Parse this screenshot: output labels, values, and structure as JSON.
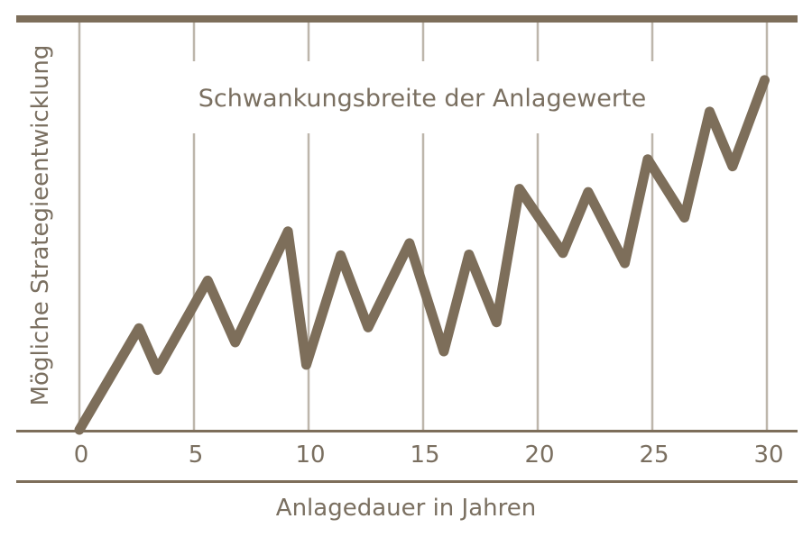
{
  "chart_data": {
    "type": "line",
    "title": "Schwankungsbreite der Anlagewerte",
    "xlabel": "Anlagedauer in Jahren",
    "ylabel": "Mögliche Strategieentwicklung",
    "xlim": [
      0,
      30
    ],
    "ylim": [
      0,
      100
    ],
    "x_ticks": [
      "0",
      "5",
      "10",
      "15",
      "20",
      "25",
      "30"
    ],
    "grid": "vertical",
    "legend": "none",
    "series": [
      {
        "name": "Strategieentwicklung",
        "x": [
          0,
          2.6,
          3.4,
          5.6,
          6.8,
          9.1,
          9.9,
          11.4,
          12.6,
          14.4,
          15.9,
          17.0,
          18.2,
          19.2,
          21.1,
          22.2,
          23.8,
          24.8,
          26.4,
          27.5,
          28.5,
          29.9
        ],
        "values": [
          0,
          25.8,
          15.2,
          37.9,
          22.2,
          50.4,
          16.5,
          44.3,
          26.0,
          47.4,
          19.9,
          44.5,
          27.3,
          61.2,
          44.9,
          60.4,
          42.3,
          68.7,
          53.9,
          80.8,
          66.9,
          88.8
        ]
      }
    ],
    "colors": {
      "line": "#7d6e5a",
      "frame": "#7d6e5a",
      "grid": "#bdb6ab",
      "text": "#7a6f60"
    }
  }
}
